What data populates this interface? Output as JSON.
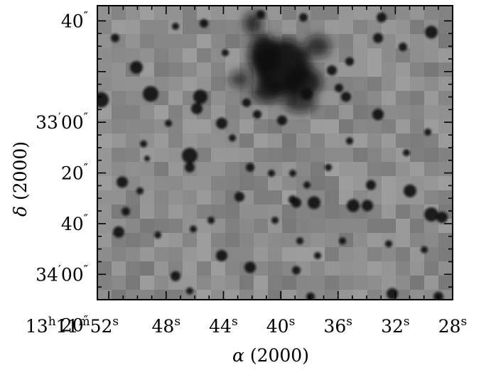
{
  "chart_data": {
    "type": "image",
    "description_free": true,
    "xlabel_symbol": "α",
    "xlabel_rest": " (2000)",
    "ylabel_symbol": "δ",
    "ylabel_rest": " (2000)",
    "x_axis": {
      "unit": "time seconds of right ascension (13h11m)",
      "range": [
        52.8,
        28.0
      ],
      "reversed": true,
      "ticks": [
        {
          "value": 52,
          "label_main": "13",
          "sup1": "h",
          "mid": "11",
          "sup2": "m",
          "tail": "52",
          "sup3": "s"
        },
        {
          "value": 48,
          "label_main": "48",
          "sup3": "s"
        },
        {
          "value": 44,
          "label_main": "44",
          "sup3": "s"
        },
        {
          "value": 40,
          "label_main": "40",
          "sup3": "s"
        },
        {
          "value": 36,
          "label_main": "36",
          "sup3": "s"
        },
        {
          "value": 32,
          "label_main": "32",
          "sup3": "s"
        },
        {
          "value": 28,
          "label_main": "28",
          "sup3": "s"
        }
      ]
    },
    "y_axis": {
      "unit": "arcseconds offset below 33'",
      "range": [
        -46,
        70
      ],
      "ticks": [
        {
          "value": -40,
          "label_main": "40",
          "sup": "″"
        },
        {
          "value": 0,
          "label_main": "33",
          "sup_a": "′",
          "label_tail": "00",
          "sup": "″"
        },
        {
          "value": 20,
          "label_main": "20",
          "sup": "″"
        },
        {
          "value": 40,
          "label_main": "40",
          "sup": "″"
        },
        {
          "value": 60,
          "label_main": "34",
          "sup_a": "′",
          "label_tail": "00",
          "sup": "″"
        },
        {
          "value": 80,
          "label_main": "20",
          "sup": "″"
        }
      ]
    },
    "grid": false
  },
  "colors": {
    "background": "#ffffff",
    "image_base": "#8a8a8a",
    "star": "#0e0e0e",
    "axis": "#000000"
  }
}
